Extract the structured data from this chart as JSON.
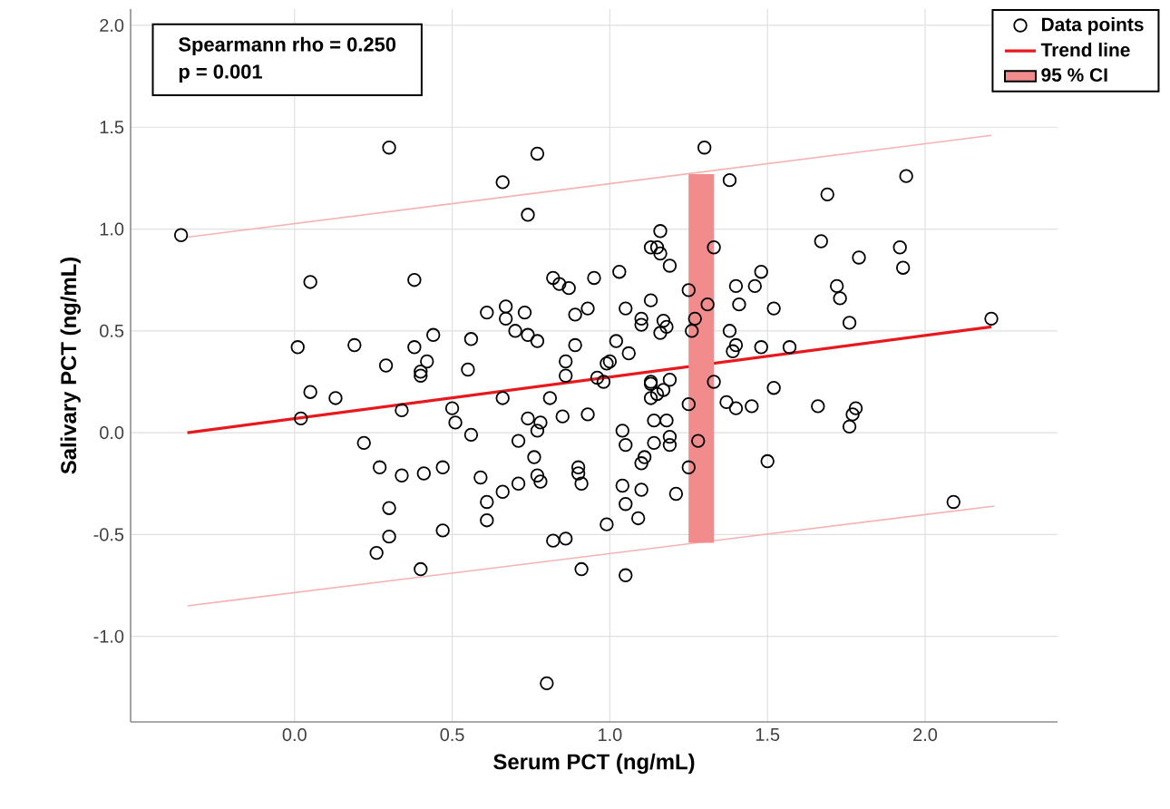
{
  "chart_data": {
    "type": "scatter",
    "xlabel": "Serum PCT (ng/mL)",
    "ylabel": "Salivary PCT (ng/mL)",
    "annotations": [
      "Spearmann rho = 0.250",
      "p = 0.001"
    ],
    "xlim": [
      -0.52,
      2.42
    ],
    "ylim": [
      -1.42,
      2.08
    ],
    "xticks": [
      {
        "value": 0,
        "label": "0.0"
      },
      {
        "value": 0.5,
        "label": "0.5"
      },
      {
        "value": 1,
        "label": "1.0"
      },
      {
        "value": 1.5,
        "label": "1.5"
      },
      {
        "value": 2,
        "label": "2.0"
      }
    ],
    "yticks": [
      {
        "value": -1,
        "label": "-1.0"
      },
      {
        "value": -0.5,
        "label": "-0.5"
      },
      {
        "value": 0,
        "label": "0.0"
      },
      {
        "value": 0.5,
        "label": "0.5"
      },
      {
        "value": 1,
        "label": "1.0"
      },
      {
        "value": 1.5,
        "label": "1.5"
      },
      {
        "value": 2,
        "label": "2.0"
      }
    ],
    "grid": true,
    "legend": "top right",
    "series": [
      {
        "name": "Data points",
        "marker": "circle",
        "color": "#000000",
        "x": [
          0.3,
          0.77,
          0.66,
          0.74,
          -0.36,
          0.05,
          0.38,
          0.82,
          0.84,
          0.87,
          0.95,
          1.03,
          0.61,
          0.67,
          0.67,
          0.7,
          0.73,
          0.74,
          0.77,
          0.89,
          0.93,
          1.05,
          0.01,
          0.19,
          0.44,
          0.56,
          0.38,
          0.42,
          0.29,
          0.4,
          0.4,
          0.55,
          0.89,
          0.86,
          1.02,
          1.06,
          1.0,
          0.99,
          0.86,
          0.96,
          1.13,
          1.3,
          1.38,
          1.94,
          1.69,
          1.16,
          1.15,
          1.16,
          1.19,
          1.33,
          1.67,
          1.79,
          1.92,
          1.93,
          1.48,
          1.4,
          1.46,
          1.25,
          1.41,
          1.31,
          1.27,
          1.52,
          1.72,
          1.73,
          1.76,
          2.21,
          1.13,
          1.1,
          1.1,
          1.17,
          1.18,
          1.16,
          1.26,
          1.38,
          1.4,
          1.39,
          1.48,
          1.57,
          1.33,
          1.13,
          1.19,
          1.52,
          1.13,
          1.17,
          1.13,
          1.15,
          1.25,
          1.37,
          1.4,
          1.45,
          1.66,
          1.78,
          1.77,
          1.76,
          1.14,
          1.18,
          1.19,
          1.19,
          1.14,
          1.28,
          1.11,
          1.1,
          1.25,
          1.5,
          1.1,
          1.21,
          1.09,
          2.09,
          0.98,
          0.05,
          0.13,
          0.02,
          0.34,
          0.5,
          0.51,
          0.56,
          0.66,
          0.81,
          0.74,
          0.78,
          0.77,
          0.85,
          0.93,
          1.04,
          1.05,
          0.22,
          0.71,
          0.76,
          0.27,
          0.34,
          0.41,
          0.47,
          0.59,
          0.66,
          0.71,
          0.77,
          0.78,
          0.9,
          0.9,
          0.91,
          1.04,
          1.05,
          0.61,
          0.61,
          0.3,
          0.3,
          0.26,
          0.47,
          0.4,
          0.99,
          0.82,
          0.86,
          0.91,
          1.05,
          0.8
        ],
        "values": [
          1.4,
          1.37,
          1.23,
          1.07,
          0.97,
          0.74,
          0.75,
          0.76,
          0.73,
          0.71,
          0.76,
          0.79,
          0.59,
          0.62,
          0.56,
          0.5,
          0.59,
          0.48,
          0.45,
          0.58,
          0.61,
          0.61,
          0.42,
          0.43,
          0.48,
          0.46,
          0.42,
          0.35,
          0.33,
          0.3,
          0.28,
          0.31,
          0.43,
          0.35,
          0.45,
          0.39,
          0.35,
          0.34,
          0.28,
          0.27,
          0.91,
          1.4,
          1.24,
          1.26,
          1.17,
          0.99,
          0.91,
          0.88,
          0.82,
          0.91,
          0.94,
          0.86,
          0.91,
          0.81,
          0.79,
          0.72,
          0.72,
          0.7,
          0.63,
          0.63,
          0.56,
          0.61,
          0.72,
          0.66,
          0.54,
          0.56,
          0.65,
          0.56,
          0.53,
          0.55,
          0.52,
          0.49,
          0.5,
          0.5,
          0.43,
          0.4,
          0.42,
          0.42,
          0.25,
          0.25,
          0.26,
          0.22,
          0.24,
          0.21,
          0.17,
          0.19,
          0.14,
          0.15,
          0.12,
          0.13,
          0.13,
          0.12,
          0.09,
          0.03,
          0.06,
          0.06,
          -0.02,
          -0.06,
          -0.05,
          -0.04,
          -0.12,
          -0.15,
          -0.17,
          -0.14,
          -0.28,
          -0.3,
          -0.42,
          -0.34,
          0.25,
          0.2,
          0.17,
          0.07,
          0.11,
          0.12,
          0.05,
          -0.01,
          0.17,
          0.17,
          0.07,
          0.05,
          0.01,
          0.08,
          0.09,
          0.01,
          -0.06,
          -0.05,
          -0.04,
          -0.12,
          -0.17,
          -0.21,
          -0.2,
          -0.17,
          -0.22,
          -0.29,
          -0.25,
          -0.21,
          -0.24,
          -0.17,
          -0.2,
          -0.25,
          -0.26,
          -0.35,
          -0.34,
          -0.43,
          -0.37,
          -0.51,
          -0.59,
          -0.48,
          -0.67,
          -0.45,
          -0.53,
          -0.52,
          -0.67,
          -0.7,
          -1.23
        ]
      },
      {
        "name": "Trend line",
        "type": "line",
        "color": "#e8191d",
        "x": [
          -0.34,
          2.21
        ],
        "values": [
          0.0,
          0.52
        ]
      },
      {
        "type": "line",
        "color": "#f6b3b3",
        "x": [
          -0.34,
          2.21
        ],
        "values": [
          0.96,
          1.46
        ]
      },
      {
        "type": "line",
        "color": "#f6b3b3",
        "x": [
          -0.34,
          2.22
        ],
        "values": [
          -0.85,
          -0.36
        ]
      },
      {
        "name": "95 % CI",
        "type": "bar",
        "color": "#f28b8b",
        "x": [
          1.29
        ],
        "base": [
          -0.54
        ],
        "values": [
          1.81
        ]
      }
    ]
  }
}
